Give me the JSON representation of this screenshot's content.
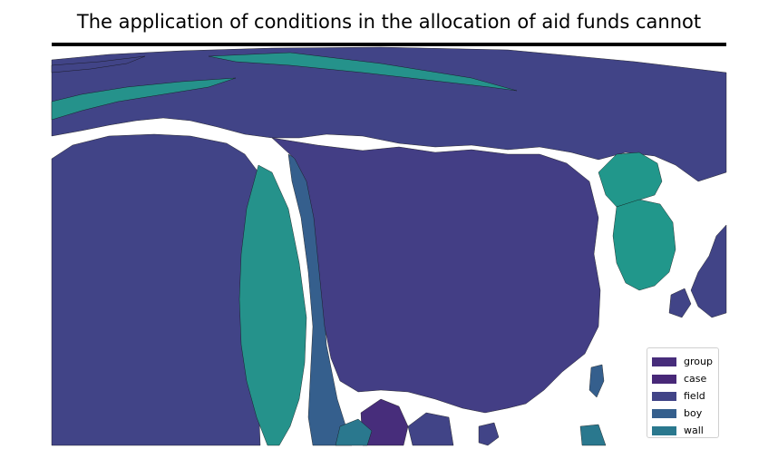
{
  "title": "The application of conditions in the allocation of aid funds cannot",
  "colors": {
    "group": "#472d7b",
    "case": "#482878",
    "field": "#414487",
    "boy": "#355f8d",
    "wall": "#2a788e",
    "teal": "#25928b",
    "teal_light": "#21978b"
  },
  "legend": {
    "items": [
      {
        "label": "group",
        "color": "#472d7b"
      },
      {
        "label": "case",
        "color": "#482878"
      },
      {
        "label": "field",
        "color": "#414487"
      },
      {
        "label": "boy",
        "color": "#355f8d"
      },
      {
        "label": "wall",
        "color": "#2a788e"
      }
    ]
  }
}
